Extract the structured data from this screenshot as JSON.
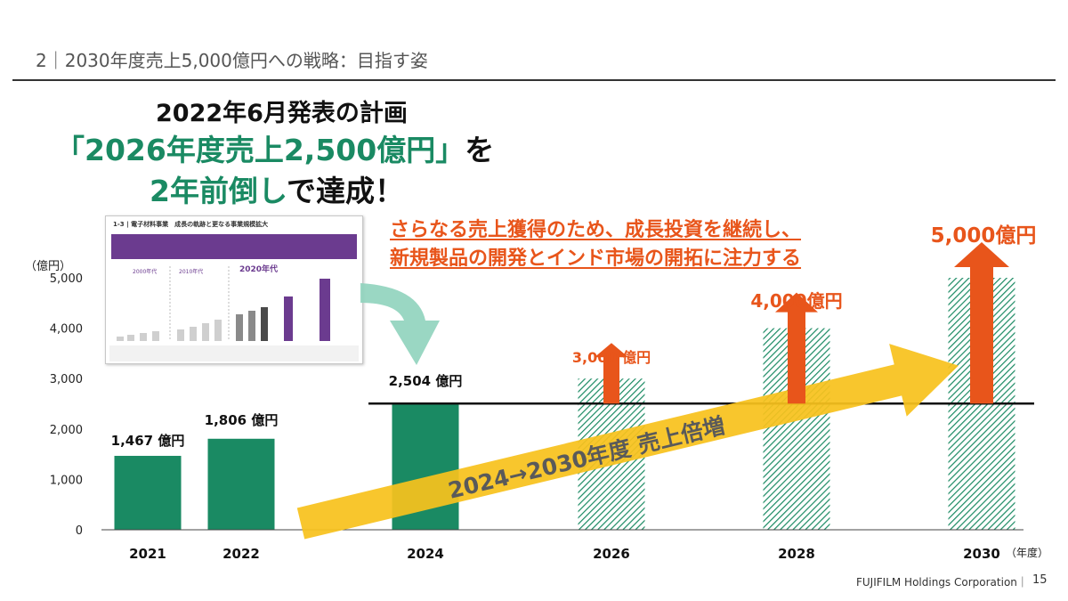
{
  "section_title": "2｜2030年度売上5,000億円への戦略：目指す姿",
  "headline": {
    "line1": "2022年6月発表の計画",
    "line2_green": "「2026年度売上2,500億円」",
    "line2_tail": "を",
    "line3_green": "2年前倒し",
    "line3_tail": "で達成！"
  },
  "message": {
    "line1": "さらなる売上獲得のため、成長投資を継続し、",
    "line2": "新規製品の開発とインド市場の開拓に注力する"
  },
  "thumbnail": {
    "title": "1-3 | 電子材料事業　成長の軌跡と更なる事業規模拡大",
    "decade_labels": [
      "2000年代",
      "2010年代",
      "2020年代"
    ]
  },
  "arrow_text": "2024→2030年度 売上倍増",
  "footer": {
    "company": "FUJIFILM Holdings Corporation｜",
    "page": "15"
  },
  "colors": {
    "actual_bar": "#1a8a63",
    "target_bar_hatch": "#1a8a63",
    "growth_arrow": "#e8551b",
    "trend_arrow": "#f7c21d",
    "thumb_arrow": "#8fd3bd"
  },
  "chart_data": {
    "type": "bar",
    "ylabel": "（億円）",
    "xlabel": "（年度）",
    "ylim": [
      0,
      5000
    ],
    "yticks": [
      0,
      1000,
      2000,
      3000,
      4000,
      5000
    ],
    "ytick_labels": [
      "0",
      "1,000",
      "2,000",
      "3,000",
      "4,000",
      "5,000"
    ],
    "categories": [
      "2021",
      "2022",
      "2024",
      "2026",
      "2028",
      "2030"
    ],
    "values": [
      1467,
      1806,
      2504,
      3000,
      4000,
      5000
    ],
    "bar_style": [
      "solid",
      "solid",
      "solid",
      "hatched",
      "hatched",
      "hatched"
    ],
    "value_labels": [
      "1,467 億円",
      "1,806 億円",
      "2,504 億円",
      "3,000 億円",
      "4,000億円",
      "5,000億円"
    ],
    "baseline_reference": 2504
  }
}
